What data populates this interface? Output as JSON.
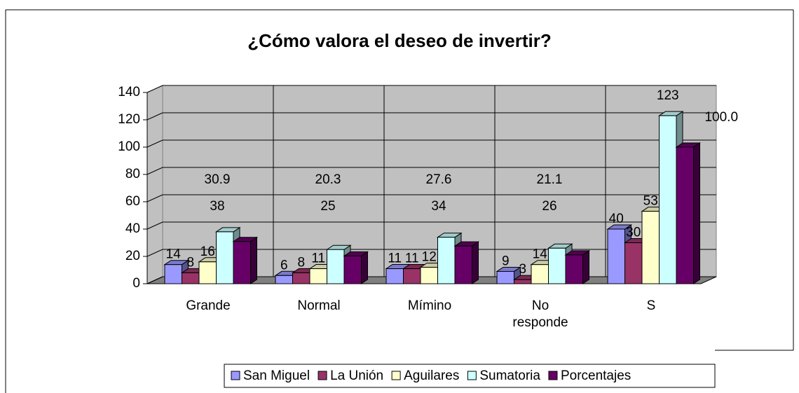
{
  "chart_data": {
    "type": "bar3d",
    "title": "¿Cómo valora el deseo de invertir?",
    "categories": [
      "Grande",
      "Normal",
      "Mímino",
      "No responde",
      "S"
    ],
    "series": [
      {
        "name": "San Miguel",
        "color": "#9999FF",
        "values": [
          14,
          6,
          11,
          9,
          40
        ]
      },
      {
        "name": "La Unión",
        "color": "#993366",
        "values": [
          8,
          8,
          11,
          3,
          30
        ]
      },
      {
        "name": "Aguilares",
        "color": "#FFFFCC",
        "values": [
          16,
          11,
          12,
          14,
          53
        ]
      },
      {
        "name": "Sumatoria",
        "color": "#CCFFFF",
        "values": [
          38,
          25,
          34,
          26,
          123
        ]
      },
      {
        "name": "Porcentajes",
        "color": "#660066",
        "values": [
          30.9,
          20.3,
          27.6,
          21.1,
          100
        ],
        "value_labels": [
          "30.9",
          "20.3",
          "27.6",
          "21.1",
          "100.0"
        ]
      }
    ],
    "ylim": [
      0,
      140
    ],
    "yticks": [
      0,
      20,
      40,
      60,
      80,
      100,
      120,
      140
    ],
    "grid": true,
    "legend": "bottom"
  }
}
